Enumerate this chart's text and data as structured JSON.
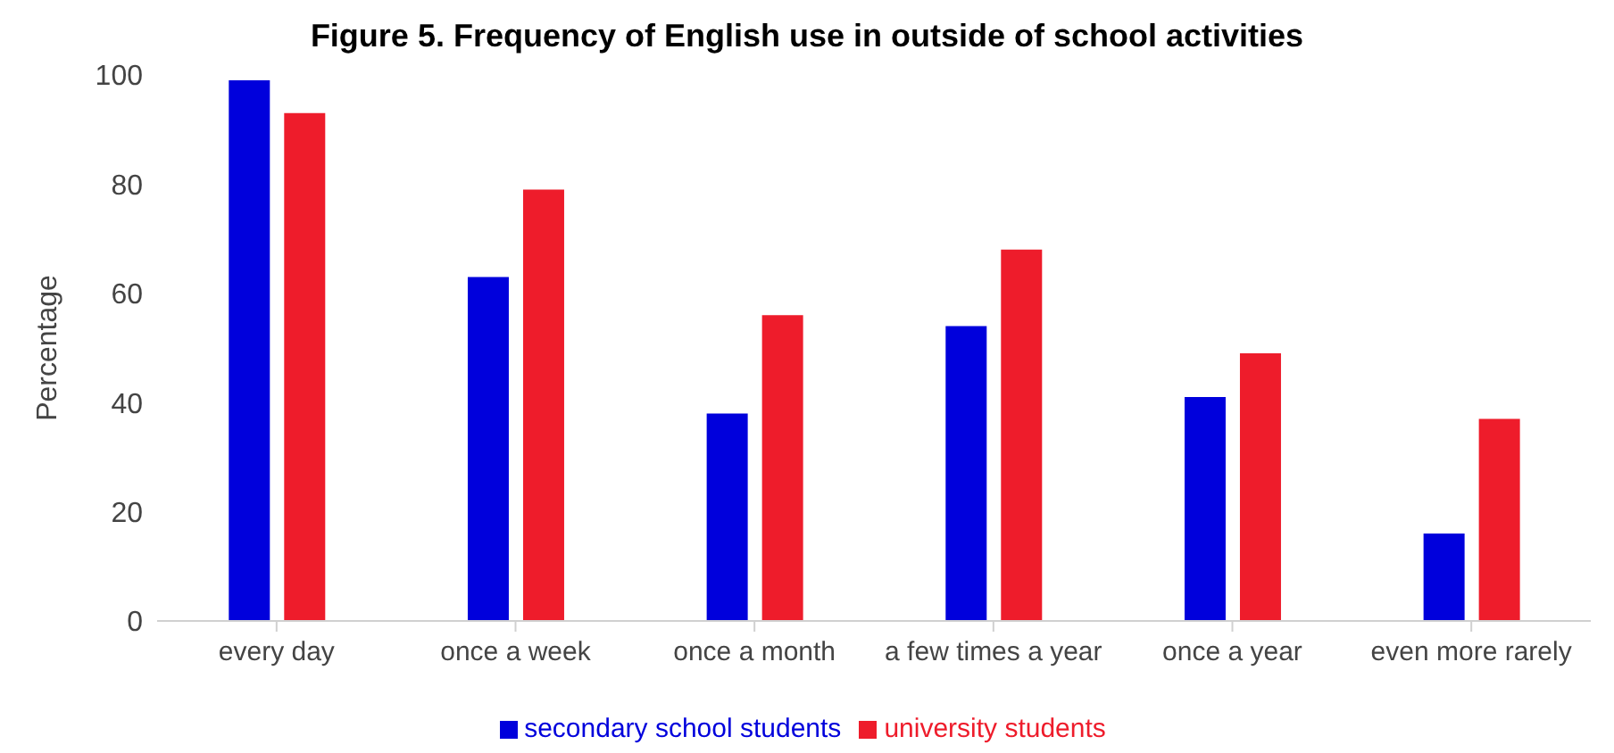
{
  "chart_data": {
    "type": "bar",
    "title": "Figure 5. Frequency of English use in outside of school activities",
    "ylabel": "Percentage",
    "categories": [
      "every day",
      "once a week",
      "once a month",
      "a few times a year",
      "once a year",
      "even more rarely"
    ],
    "series": [
      {
        "name": "secondary school students",
        "color": "#0000dc",
        "values": [
          99,
          63,
          38,
          54,
          41,
          16
        ]
      },
      {
        "name": "university students",
        "color": "#ee1c2b",
        "values": [
          93,
          79,
          56,
          68,
          49,
          37
        ]
      }
    ],
    "ylim": [
      0,
      100
    ],
    "yticks": [
      0,
      20,
      40,
      60,
      80,
      100
    ],
    "grid": false,
    "legend": "bottom"
  }
}
